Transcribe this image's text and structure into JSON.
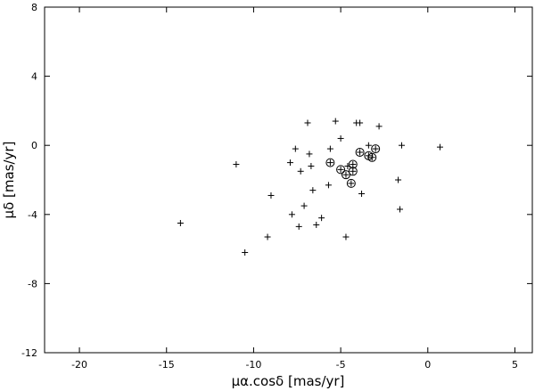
{
  "chart_data": {
    "type": "scatter",
    "xlabel": "μα.cosδ [mas/yr]",
    "ylabel": "μδ [mas/yr]",
    "xlim": [
      -22,
      6
    ],
    "ylim": [
      -12,
      8
    ],
    "xticks": [
      -20,
      -15,
      -10,
      -5,
      0,
      5
    ],
    "yticks": [
      -12,
      -8,
      -4,
      0,
      4,
      8
    ],
    "grid": false,
    "legend": "none",
    "series": [
      {
        "marker": "plus",
        "points": [
          [
            -14.2,
            -4.5
          ],
          [
            -11.0,
            -1.1
          ],
          [
            -10.5,
            -6.2
          ],
          [
            -9.2,
            -5.3
          ],
          [
            -9.0,
            -2.9
          ],
          [
            -7.8,
            -4.0
          ],
          [
            -7.6,
            -0.2
          ],
          [
            -7.9,
            -1.0
          ],
          [
            -7.3,
            -1.5
          ],
          [
            -7.4,
            -4.7
          ],
          [
            -7.1,
            -3.5
          ],
          [
            -6.9,
            1.3
          ],
          [
            -6.8,
            -0.5
          ],
          [
            -6.7,
            -1.2
          ],
          [
            -6.6,
            -2.6
          ],
          [
            -6.4,
            -4.6
          ],
          [
            -6.1,
            -4.2
          ],
          [
            -5.7,
            -2.3
          ],
          [
            -5.6,
            -0.2
          ],
          [
            -5.3,
            1.4
          ],
          [
            -5.0,
            0.4
          ],
          [
            -4.7,
            -5.3
          ],
          [
            -4.6,
            -1.2
          ],
          [
            -4.1,
            1.3
          ],
          [
            -3.9,
            1.3
          ],
          [
            -3.8,
            -2.8
          ],
          [
            -3.4,
            0.0
          ],
          [
            -2.8,
            1.1
          ],
          [
            -1.7,
            -2.0
          ],
          [
            -1.6,
            -3.7
          ],
          [
            -1.5,
            0.0
          ],
          [
            0.7,
            -0.1
          ]
        ]
      },
      {
        "marker": "circled-plus",
        "points": [
          [
            -5.6,
            -1.0
          ],
          [
            -5.0,
            -1.4
          ],
          [
            -4.7,
            -1.7
          ],
          [
            -4.4,
            -2.2
          ],
          [
            -4.3,
            -1.1
          ],
          [
            -4.3,
            -1.5
          ],
          [
            -3.9,
            -0.4
          ],
          [
            -3.4,
            -0.6
          ],
          [
            -3.2,
            -0.7
          ],
          [
            -3.0,
            -0.2
          ]
        ]
      }
    ]
  }
}
